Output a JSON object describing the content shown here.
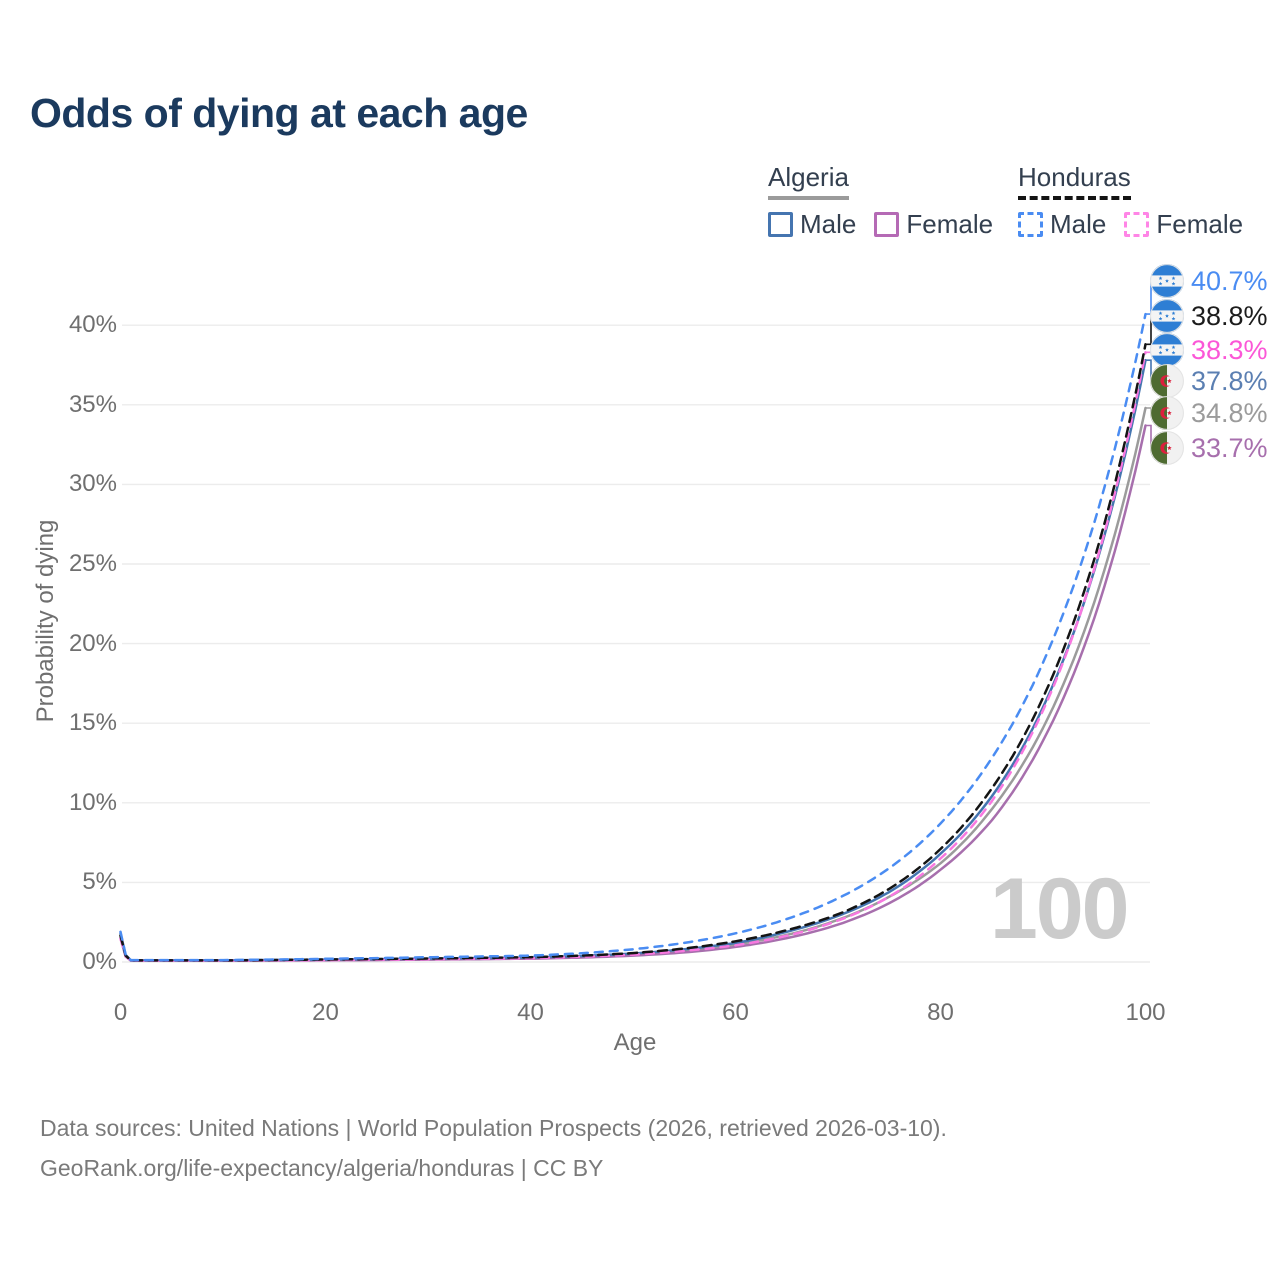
{
  "title": "Odds of dying at each age",
  "legend": {
    "groups": [
      {
        "country": "Algeria",
        "line_style": "solid",
        "underline_color": "#9b9b9b",
        "items": [
          {
            "label": "Male",
            "color": "#4575b0"
          },
          {
            "label": "Female",
            "color": "#b56ab5"
          }
        ]
      },
      {
        "country": "Honduras",
        "line_style": "dashed",
        "underline_color": "#141414",
        "items": [
          {
            "label": "Male",
            "color": "#4a8cf2"
          },
          {
            "label": "Female",
            "color": "#ff85e6"
          }
        ]
      }
    ]
  },
  "chart_data": {
    "type": "line",
    "xlabel": "Age",
    "ylabel": "Probability of dying",
    "xlim": [
      0,
      100
    ],
    "ylim": [
      0,
      43
    ],
    "x_ticks": [
      0,
      20,
      40,
      60,
      80,
      100
    ],
    "y_ticks": [
      "0%",
      "5%",
      "10%",
      "15%",
      "20%",
      "25%",
      "30%",
      "35%",
      "40%"
    ],
    "grid": "horizontal",
    "legend_position": "top-right",
    "watermark": "100",
    "ages": [
      0,
      1,
      10,
      20,
      30,
      40,
      45,
      50,
      55,
      60,
      65,
      70,
      75,
      80,
      85,
      90,
      95,
      100
    ],
    "series": [
      {
        "name": "Algeria Both sexes",
        "country": "Algeria",
        "style": "solid",
        "color": "#9b9b9b",
        "values": [
          1.7,
          0.1,
          0.1,
          0.13,
          0.19,
          0.26,
          0.35,
          0.48,
          0.72,
          1.1,
          1.7,
          2.65,
          4.1,
          6.2,
          9.6,
          14.7,
          22.6,
          34.8
        ]
      },
      {
        "name": "Algeria Female",
        "country": "Algeria",
        "style": "solid",
        "color": "#a76fad",
        "values": [
          1.5,
          0.08,
          0.08,
          0.1,
          0.15,
          0.21,
          0.28,
          0.4,
          0.6,
          0.95,
          1.5,
          2.35,
          3.7,
          5.8,
          8.9,
          13.9,
          21.6,
          33.7
        ]
      },
      {
        "name": "Algeria Male",
        "country": "Algeria",
        "style": "solid",
        "color": "#4575b0",
        "values": [
          1.8,
          0.11,
          0.11,
          0.15,
          0.21,
          0.28,
          0.38,
          0.53,
          0.8,
          1.2,
          1.9,
          2.9,
          4.4,
          6.8,
          10.4,
          16.0,
          24.6,
          37.8
        ]
      },
      {
        "name": "Honduras Female",
        "country": "Honduras",
        "style": "dashed",
        "color": "#f878e0",
        "values": [
          1.45,
          0.09,
          0.09,
          0.12,
          0.17,
          0.24,
          0.33,
          0.46,
          0.7,
          1.05,
          1.65,
          2.6,
          4.1,
          6.5,
          10.1,
          15.8,
          24.7,
          38.3
        ]
      },
      {
        "name": "Honduras Both sexes",
        "country": "Honduras",
        "style": "dashed",
        "color": "#141414",
        "values": [
          1.65,
          0.1,
          0.1,
          0.16,
          0.22,
          0.3,
          0.4,
          0.56,
          0.85,
          1.3,
          2.0,
          3.0,
          4.6,
          7.1,
          10.9,
          16.6,
          25.3,
          38.8
        ]
      },
      {
        "name": "Honduras Male",
        "country": "Honduras",
        "style": "dashed",
        "color": "#4a8cf2",
        "values": [
          1.9,
          0.12,
          0.12,
          0.2,
          0.3,
          0.4,
          0.55,
          0.8,
          1.2,
          1.8,
          2.7,
          4.0,
          5.9,
          8.7,
          12.8,
          18.8,
          27.6,
          40.7
        ]
      }
    ]
  },
  "end_labels": [
    {
      "value": "40.7%",
      "country": "Honduras",
      "series": "Honduras Male",
      "color": "#4a8cf2",
      "y_value": 40.7
    },
    {
      "value": "38.8%",
      "country": "Honduras",
      "series": "Honduras Both sexes",
      "color": "#1c1c1c",
      "y_value": 38.8
    },
    {
      "value": "38.3%",
      "country": "Honduras",
      "series": "Honduras Female",
      "color": "#fb57d7",
      "y_value": 38.3
    },
    {
      "value": "37.8%",
      "country": "Algeria",
      "series": "Algeria Male",
      "color": "#5b7fb2",
      "y_value": 37.8
    },
    {
      "value": "34.8%",
      "country": "Algeria",
      "series": "Algeria Both sexes",
      "color": "#9b9b9b",
      "y_value": 34.8
    },
    {
      "value": "33.7%",
      "country": "Algeria",
      "series": "Algeria Female",
      "color": "#a76fad",
      "y_value": 33.7
    }
  ],
  "colors": {
    "title": "#1b3a5e",
    "axis_text": "#6f6f6f",
    "grid": "#ececec",
    "watermark": "#cbcbcb"
  },
  "footer": {
    "line1": "Data sources: United Nations | World Population Prospects (2026, retrieved 2026-03-10).",
    "line2": "GeoRank.org/life-expectancy/algeria/honduras | CC BY"
  }
}
